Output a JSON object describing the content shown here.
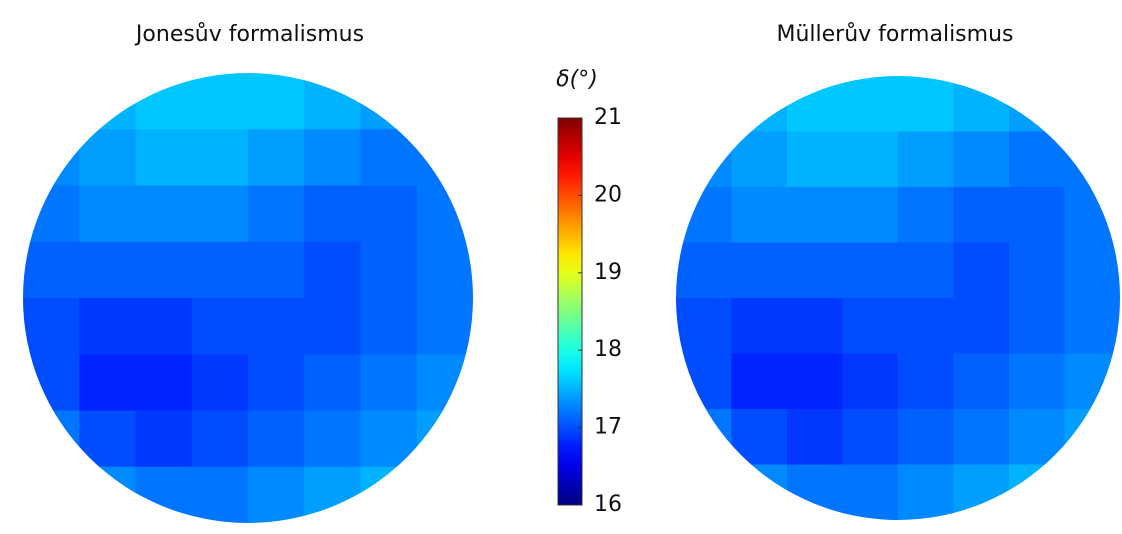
{
  "chart_data": [
    {
      "type": "heatmap",
      "title": "Jonesův formalismus",
      "colormap": "jet",
      "clim": [
        16,
        21
      ],
      "values": [
        [
          17.4,
          17.5,
          17.6,
          17.6,
          17.6,
          17.5,
          17.4,
          17.3
        ],
        [
          17.3,
          17.4,
          17.5,
          17.5,
          17.4,
          17.3,
          17.2,
          17.2
        ],
        [
          17.2,
          17.3,
          17.3,
          17.3,
          17.2,
          17.1,
          17.1,
          17.2
        ],
        [
          17.1,
          17.1,
          17.1,
          17.1,
          17.1,
          17.0,
          17.1,
          17.2
        ],
        [
          17.0,
          16.9,
          16.9,
          17.0,
          17.0,
          17.0,
          17.1,
          17.2
        ],
        [
          17.0,
          16.8,
          16.8,
          16.9,
          17.0,
          17.1,
          17.2,
          17.3
        ],
        [
          17.2,
          17.0,
          16.9,
          17.0,
          17.1,
          17.2,
          17.3,
          17.4
        ],
        [
          17.4,
          17.3,
          17.2,
          17.2,
          17.3,
          17.4,
          17.5,
          17.5
        ]
      ]
    },
    {
      "type": "heatmap",
      "title": "Müllerův formalismus",
      "colormap": "jet",
      "clim": [
        16,
        21
      ],
      "values": [
        [
          17.4,
          17.5,
          17.6,
          17.6,
          17.6,
          17.5,
          17.4,
          17.3
        ],
        [
          17.3,
          17.4,
          17.5,
          17.5,
          17.4,
          17.3,
          17.2,
          17.2
        ],
        [
          17.2,
          17.3,
          17.3,
          17.3,
          17.2,
          17.1,
          17.1,
          17.2
        ],
        [
          17.1,
          17.1,
          17.1,
          17.1,
          17.1,
          17.0,
          17.1,
          17.2
        ],
        [
          17.0,
          16.9,
          16.9,
          17.0,
          17.0,
          17.0,
          17.1,
          17.2
        ],
        [
          17.0,
          16.8,
          16.8,
          16.9,
          17.0,
          17.1,
          17.2,
          17.3
        ],
        [
          17.2,
          17.0,
          16.9,
          17.0,
          17.1,
          17.2,
          17.3,
          17.4
        ],
        [
          17.4,
          17.3,
          17.2,
          17.2,
          17.3,
          17.4,
          17.5,
          17.5
        ]
      ]
    }
  ],
  "colorbar": {
    "label": "δ(°)",
    "lim": [
      16,
      21
    ],
    "ticks": [
      16,
      17,
      18,
      19,
      20,
      21
    ]
  }
}
